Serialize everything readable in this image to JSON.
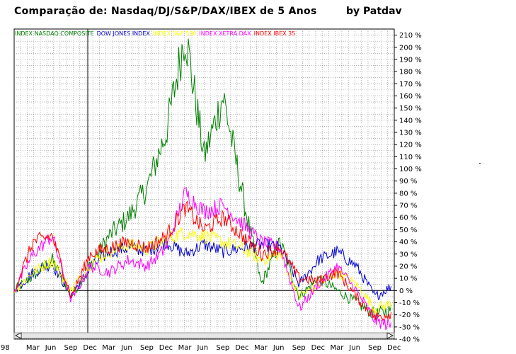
{
  "chart_data": {
    "type": "line",
    "title": "Comparação de: Nasdaq/DJ/S&P/DAX/IBEX  de 5 Anos",
    "subtitle": "by Patdav",
    "y_unit": "%",
    "ylim": [
      -40,
      215
    ],
    "grid": true,
    "legend_position": "top-left",
    "y_ticks": [
      "210 %",
      "200 %",
      "190 %",
      "180 %",
      "170 %",
      "160 %",
      "150 %",
      "140 %",
      "130 %",
      "120 %",
      "110 %",
      "100 %",
      "90 %",
      "80 %",
      "70 %",
      "60 %",
      "50 %",
      "40 %",
      "30 %",
      "20 %",
      "10 %",
      "0 %",
      "-10 %",
      "-20 %",
      "-30 %",
      "-40 %"
    ],
    "x_tick_labels": [
      "98",
      "Mar",
      "Jun",
      "Sep",
      "Dec",
      "Mar",
      "Jun",
      "Sep",
      "Dec",
      "Mar",
      "Jun",
      "Sep",
      "Dec",
      "Mar",
      "Jun",
      "Sep",
      "Dec",
      "Mar",
      "Jun",
      "Sep",
      "Dec"
    ],
    "x": [
      "1998-01",
      "1998-03",
      "1998-06",
      "1998-09",
      "1998-12",
      "1999-03",
      "1999-06",
      "1999-09",
      "1999-12",
      "2000-03",
      "2000-06",
      "2000-09",
      "2000-12",
      "2001-03",
      "2001-06",
      "2001-09",
      "2001-12",
      "2002-03",
      "2002-06",
      "2002-09",
      "2002-12"
    ],
    "series": [
      {
        "name": "INDEX NASDAQ COMPOSITE",
        "color": "#008000",
        "values": [
          0,
          12,
          25,
          -5,
          20,
          45,
          60,
          85,
          130,
          212,
          110,
          160,
          80,
          5,
          40,
          -5,
          10,
          0,
          -10,
          -20,
          -15
        ]
      },
      {
        "name": "DOW JONES INDEX",
        "color": "#0000cc",
        "values": [
          0,
          15,
          22,
          -4,
          18,
          32,
          35,
          33,
          40,
          30,
          38,
          32,
          35,
          38,
          35,
          5,
          25,
          32,
          20,
          -5,
          5
        ]
      },
      {
        "name": "INDEX S&P 500",
        "color": "#ffff00",
        "values": [
          0,
          15,
          25,
          0,
          22,
          32,
          38,
          34,
          42,
          48,
          45,
          40,
          35,
          25,
          30,
          -5,
          5,
          15,
          5,
          -15,
          -10
        ]
      },
      {
        "name": "INDEX XETRA DAX",
        "color": "#ff00ff",
        "values": [
          0,
          30,
          45,
          -8,
          20,
          15,
          25,
          20,
          35,
          80,
          65,
          70,
          55,
          40,
          35,
          -15,
          5,
          20,
          0,
          -25,
          -30
        ]
      },
      {
        "name": "INDEX IBEX 35",
        "color": "#ff0000",
        "values": [
          0,
          40,
          45,
          -5,
          30,
          35,
          40,
          35,
          45,
          68,
          50,
          60,
          45,
          30,
          35,
          10,
          8,
          15,
          -5,
          -22,
          -18
        ]
      }
    ],
    "baseline_label": "0 %"
  }
}
